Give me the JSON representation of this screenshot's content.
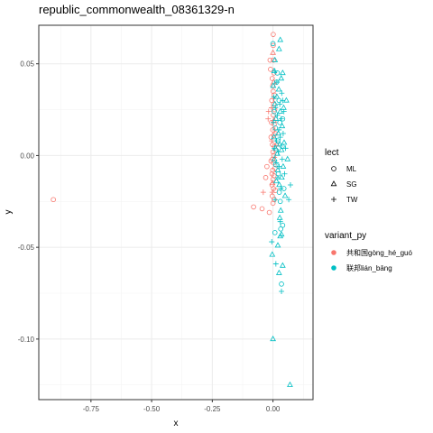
{
  "chart_data": {
    "type": "scatter",
    "title": "republic_commonwealth_08361329-n",
    "xlabel": "x",
    "ylabel": "y",
    "xlim": [
      -0.965,
      0.165
    ],
    "ylim": [
      -0.133,
      0.071
    ],
    "xticks": [
      -0.75,
      -0.5,
      -0.25,
      0.0
    ],
    "xtick_labels": [
      "-0.75",
      "-0.50",
      "-0.25",
      "0.00"
    ],
    "yticks": [
      -0.1,
      -0.05,
      0.0,
      0.05
    ],
    "ytick_labels": [
      "-0.10",
      "-0.05",
      "0.00",
      "0.05"
    ],
    "grid": true,
    "legend_position": "right",
    "shape_legend": {
      "title": "lect",
      "items": [
        {
          "label": "ML",
          "shape": "circle"
        },
        {
          "label": "SG",
          "shape": "triangle"
        },
        {
          "label": "TW",
          "shape": "plus"
        }
      ]
    },
    "color_legend": {
      "title": "variant_py",
      "items": [
        {
          "label": "共和国gòng_hé_guó",
          "color": "#F8766D"
        },
        {
          "label": "联邦lián_bāng",
          "color": "#00BFC4"
        }
      ]
    },
    "series": [
      {
        "name": "共和国gòng_hé_guó",
        "color": "#F8766D",
        "points": [
          {
            "x": -0.905,
            "y": -0.024,
            "lect": "ML"
          },
          {
            "x": -0.08,
            "y": -0.028,
            "lect": "ML"
          },
          {
            "x": -0.045,
            "y": -0.029,
            "lect": "ML"
          },
          {
            "x": -0.04,
            "y": -0.02,
            "lect": "TW"
          },
          {
            "x": -0.03,
            "y": -0.012,
            "lect": "ML"
          },
          {
            "x": -0.025,
            "y": -0.006,
            "lect": "ML"
          },
          {
            "x": -0.02,
            "y": 0.02,
            "lect": "TW"
          },
          {
            "x": -0.018,
            "y": 0.024,
            "lect": "TW"
          },
          {
            "x": -0.015,
            "y": -0.031,
            "lect": "ML"
          },
          {
            "x": -0.012,
            "y": 0.052,
            "lect": "ML"
          },
          {
            "x": -0.01,
            "y": 0.047,
            "lect": "ML"
          },
          {
            "x": -0.008,
            "y": 0.01,
            "lect": "ML"
          },
          {
            "x": -0.008,
            "y": -0.003,
            "lect": "ML"
          },
          {
            "x": -0.006,
            "y": 0.018,
            "lect": "ML"
          },
          {
            "x": -0.005,
            "y": 0.03,
            "lect": "ML"
          },
          {
            "x": -0.005,
            "y": 0.008,
            "lect": "TW"
          },
          {
            "x": -0.004,
            "y": -0.01,
            "lect": "ML"
          },
          {
            "x": -0.004,
            "y": -0.016,
            "lect": "ML"
          },
          {
            "x": -0.003,
            "y": 0.042,
            "lect": "ML"
          },
          {
            "x": -0.003,
            "y": -0.022,
            "lect": "ML"
          },
          {
            "x": -0.002,
            "y": 0.006,
            "lect": "ML"
          },
          {
            "x": -0.002,
            "y": -0.002,
            "lect": "ML"
          },
          {
            "x": -0.001,
            "y": 0.038,
            "lect": "ML"
          },
          {
            "x": -0.001,
            "y": 0.014,
            "lect": "ML"
          },
          {
            "x": -0.001,
            "y": -0.008,
            "lect": "ML"
          },
          {
            "x": 0.0,
            "y": 0.002,
            "lect": "ML"
          },
          {
            "x": 0.0,
            "y": -0.013,
            "lect": "ML"
          },
          {
            "x": 0.0,
            "y": -0.026,
            "lect": "ML"
          },
          {
            "x": 0.001,
            "y": 0.066,
            "lect": "ML"
          },
          {
            "x": 0.001,
            "y": 0.06,
            "lect": "ML"
          },
          {
            "x": 0.001,
            "y": 0.035,
            "lect": "ML"
          },
          {
            "x": 0.001,
            "y": 0.022,
            "lect": "ML"
          },
          {
            "x": 0.002,
            "y": 0.052,
            "lect": "ML"
          },
          {
            "x": 0.002,
            "y": -0.004,
            "lect": "ML"
          },
          {
            "x": 0.002,
            "y": -0.018,
            "lect": "ML"
          },
          {
            "x": 0.003,
            "y": 0.028,
            "lect": "ML"
          },
          {
            "x": 0.003,
            "y": 0.011,
            "lect": "ML"
          },
          {
            "x": 0.003,
            "y": 0.0,
            "lect": "ML"
          },
          {
            "x": 0.004,
            "y": 0.045,
            "lect": "ML"
          },
          {
            "x": 0.004,
            "y": -0.011,
            "lect": "ML"
          },
          {
            "x": 0.005,
            "y": 0.033,
            "lect": "ML"
          },
          {
            "x": 0.005,
            "y": 0.017,
            "lect": "ML"
          },
          {
            "x": 0.005,
            "y": -0.024,
            "lect": "ML"
          },
          {
            "x": 0.006,
            "y": 0.005,
            "lect": "ML"
          },
          {
            "x": 0.007,
            "y": 0.025,
            "lect": "ML"
          },
          {
            "x": 0.008,
            "y": -0.007,
            "lect": "ML"
          },
          {
            "x": 0.009,
            "y": 0.012,
            "lect": "ML"
          },
          {
            "x": 0.01,
            "y": -0.019,
            "lect": "ML"
          },
          {
            "x": 0.012,
            "y": 0.003,
            "lect": "ML"
          },
          {
            "x": 0.015,
            "y": 0.006,
            "lect": "SG"
          },
          {
            "x": 0.003,
            "y": 0.04,
            "lect": "SG"
          },
          {
            "x": 0.0,
            "y": 0.056,
            "lect": "SG"
          },
          {
            "x": -0.002,
            "y": -0.015,
            "lect": "SG"
          },
          {
            "x": 0.004,
            "y": 0.019,
            "lect": "SG"
          },
          {
            "x": -0.006,
            "y": 0.026,
            "lect": "TW"
          },
          {
            "x": 0.006,
            "y": -0.001,
            "lect": "TW"
          },
          {
            "x": 0.002,
            "y": 0.031,
            "lect": "TW"
          },
          {
            "x": -0.003,
            "y": -0.02,
            "lect": "TW"
          },
          {
            "x": 0.008,
            "y": 0.014,
            "lect": "TW"
          }
        ]
      },
      {
        "name": "联邦lián_bāng",
        "color": "#00BFC4",
        "points": [
          {
            "x": 0.0,
            "y": 0.061,
            "lect": "ML"
          },
          {
            "x": 0.005,
            "y": 0.024,
            "lect": "ML"
          },
          {
            "x": 0.01,
            "y": 0.015,
            "lect": "ML"
          },
          {
            "x": 0.012,
            "y": -0.005,
            "lect": "ML"
          },
          {
            "x": 0.015,
            "y": 0.04,
            "lect": "ML"
          },
          {
            "x": 0.018,
            "y": 0.045,
            "lect": "ML"
          },
          {
            "x": 0.02,
            "y": 0.008,
            "lect": "ML"
          },
          {
            "x": 0.022,
            "y": -0.01,
            "lect": "ML"
          },
          {
            "x": 0.025,
            "y": 0.03,
            "lect": "ML"
          },
          {
            "x": 0.026,
            "y": -0.02,
            "lect": "ML"
          },
          {
            "x": 0.028,
            "y": 0.018,
            "lect": "ML"
          },
          {
            "x": 0.03,
            "y": -0.025,
            "lect": "ML"
          },
          {
            "x": 0.032,
            "y": -0.04,
            "lect": "ML"
          },
          {
            "x": 0.035,
            "y": -0.07,
            "lect": "ML"
          },
          {
            "x": 0.008,
            "y": -0.042,
            "lect": "ML"
          },
          {
            "x": 0.04,
            "y": -0.038,
            "lect": "ML"
          },
          {
            "x": 0.04,
            "y": 0.02,
            "lect": "ML"
          },
          {
            "x": 0.038,
            "y": 0.005,
            "lect": "ML"
          },
          {
            "x": 0.045,
            "y": -0.018,
            "lect": "ML"
          },
          {
            "x": 0.001,
            "y": 0.038,
            "lect": "SG"
          },
          {
            "x": 0.004,
            "y": 0.01,
            "lect": "SG"
          },
          {
            "x": 0.006,
            "y": -0.002,
            "lect": "SG"
          },
          {
            "x": 0.008,
            "y": 0.028,
            "lect": "SG"
          },
          {
            "x": 0.01,
            "y": 0.004,
            "lect": "SG"
          },
          {
            "x": 0.012,
            "y": 0.02,
            "lect": "SG"
          },
          {
            "x": 0.014,
            "y": -0.014,
            "lect": "SG"
          },
          {
            "x": 0.016,
            "y": 0.032,
            "lect": "SG"
          },
          {
            "x": 0.018,
            "y": 0.001,
            "lect": "SG"
          },
          {
            "x": 0.02,
            "y": -0.008,
            "lect": "SG"
          },
          {
            "x": 0.022,
            "y": 0.012,
            "lect": "SG"
          },
          {
            "x": 0.024,
            "y": 0.036,
            "lect": "SG"
          },
          {
            "x": 0.026,
            "y": -0.016,
            "lect": "SG"
          },
          {
            "x": 0.028,
            "y": 0.006,
            "lect": "SG"
          },
          {
            "x": 0.03,
            "y": 0.024,
            "lect": "SG"
          },
          {
            "x": 0.032,
            "y": -0.03,
            "lect": "SG"
          },
          {
            "x": 0.034,
            "y": 0.042,
            "lect": "SG"
          },
          {
            "x": 0.035,
            "y": 0.003,
            "lect": "SG"
          },
          {
            "x": 0.036,
            "y": -0.012,
            "lect": "SG"
          },
          {
            "x": 0.038,
            "y": 0.016,
            "lect": "SG"
          },
          {
            "x": 0.04,
            "y": 0.045,
            "lect": "SG"
          },
          {
            "x": 0.042,
            "y": -0.006,
            "lect": "SG"
          },
          {
            "x": 0.044,
            "y": 0.026,
            "lect": "SG"
          },
          {
            "x": 0.046,
            "y": 0.007,
            "lect": "SG"
          },
          {
            "x": 0.05,
            "y": -0.022,
            "lect": "SG"
          },
          {
            "x": 0.055,
            "y": 0.03,
            "lect": "SG"
          },
          {
            "x": 0.06,
            "y": -0.002,
            "lect": "SG"
          },
          {
            "x": 0.025,
            "y": 0.058,
            "lect": "SG"
          },
          {
            "x": 0.03,
            "y": 0.063,
            "lect": "SG"
          },
          {
            "x": 0.008,
            "y": 0.052,
            "lect": "SG"
          },
          {
            "x": 0.005,
            "y": 0.046,
            "lect": "SG"
          },
          {
            "x": 0.028,
            "y": -0.034,
            "lect": "SG"
          },
          {
            "x": 0.035,
            "y": -0.043,
            "lect": "SG"
          },
          {
            "x": 0.04,
            "y": -0.06,
            "lect": "SG"
          },
          {
            "x": -0.003,
            "y": -0.054,
            "lect": "SG"
          },
          {
            "x": 0.025,
            "y": -0.064,
            "lect": "SG"
          },
          {
            "x": 0.0,
            "y": -0.1,
            "lect": "SG"
          },
          {
            "x": 0.07,
            "y": -0.125,
            "lect": "SG"
          },
          {
            "x": 0.03,
            "y": -0.044,
            "lect": "SG"
          },
          {
            "x": 0.02,
            "y": -0.049,
            "lect": "SG"
          },
          {
            "x": 0.002,
            "y": 0.018,
            "lect": "TW"
          },
          {
            "x": 0.006,
            "y": 0.004,
            "lect": "TW"
          },
          {
            "x": 0.01,
            "y": 0.026,
            "lect": "TW"
          },
          {
            "x": 0.013,
            "y": -0.004,
            "lect": "TW"
          },
          {
            "x": 0.015,
            "y": 0.008,
            "lect": "TW"
          },
          {
            "x": 0.018,
            "y": 0.022,
            "lect": "TW"
          },
          {
            "x": 0.02,
            "y": -0.012,
            "lect": "TW"
          },
          {
            "x": 0.022,
            "y": 0.002,
            "lect": "TW"
          },
          {
            "x": 0.024,
            "y": 0.014,
            "lect": "TW"
          },
          {
            "x": 0.026,
            "y": -0.006,
            "lect": "TW"
          },
          {
            "x": 0.028,
            "y": 0.028,
            "lect": "TW"
          },
          {
            "x": 0.03,
            "y": 0.01,
            "lect": "TW"
          },
          {
            "x": 0.032,
            "y": -0.018,
            "lect": "TW"
          },
          {
            "x": 0.034,
            "y": 0.02,
            "lect": "TW"
          },
          {
            "x": 0.036,
            "y": 0.034,
            "lect": "TW"
          },
          {
            "x": 0.038,
            "y": -0.002,
            "lect": "TW"
          },
          {
            "x": 0.042,
            "y": 0.012,
            "lect": "TW"
          },
          {
            "x": 0.045,
            "y": 0.024,
            "lect": "TW"
          },
          {
            "x": 0.048,
            "y": -0.01,
            "lect": "TW"
          },
          {
            "x": 0.052,
            "y": 0.004,
            "lect": "TW"
          },
          {
            "x": 0.065,
            "y": -0.024,
            "lect": "TW"
          },
          {
            "x": 0.072,
            "y": -0.016,
            "lect": "TW"
          },
          {
            "x": 0.004,
            "y": 0.032,
            "lect": "TW"
          },
          {
            "x": 0.016,
            "y": 0.04,
            "lect": "TW"
          },
          {
            "x": 0.009,
            "y": -0.024,
            "lect": "TW"
          },
          {
            "x": 0.035,
            "y": -0.074,
            "lect": "TW"
          },
          {
            "x": 0.03,
            "y": -0.036,
            "lect": "TW"
          },
          {
            "x": -0.005,
            "y": -0.047,
            "lect": "TW"
          },
          {
            "x": 0.012,
            "y": -0.059,
            "lect": "TW"
          },
          {
            "x": 0.008,
            "y": 0.046,
            "lect": "TW"
          },
          {
            "x": 0.04,
            "y": 0.03,
            "lect": "TW"
          }
        ]
      }
    ]
  }
}
